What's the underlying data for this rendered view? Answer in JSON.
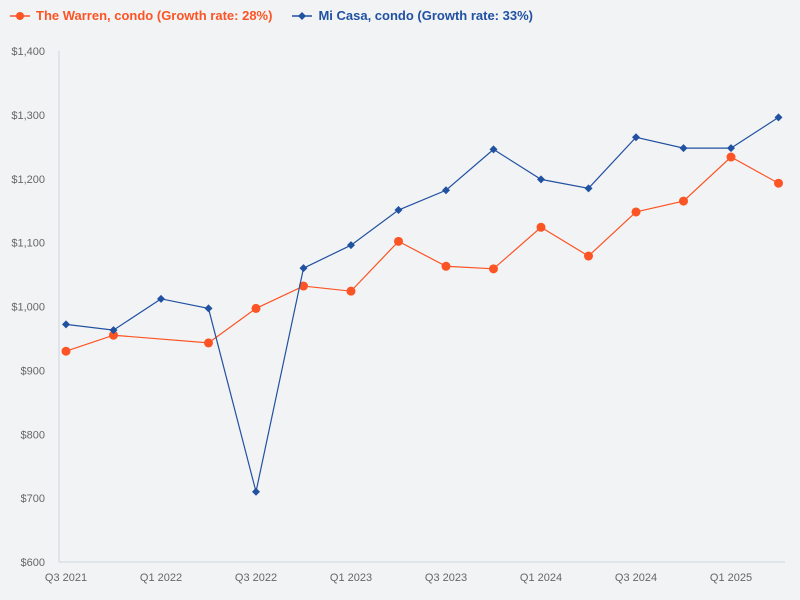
{
  "chart_data": {
    "type": "line",
    "title": "",
    "xlabel": "",
    "ylabel": "",
    "ylim": [
      600,
      1400
    ],
    "y_ticks": [
      "$600",
      "$700",
      "$800",
      "$900",
      "$1,000",
      "$1,100",
      "$1,200",
      "$1,300",
      "$1,400"
    ],
    "y_tick_values": [
      600,
      700,
      800,
      900,
      1000,
      1100,
      1200,
      1300,
      1400
    ],
    "x_tick_labels": [
      "Q3 2021",
      "Q1 2022",
      "Q3 2022",
      "Q1 2023",
      "Q3 2023",
      "Q1 2024",
      "Q3 2024",
      "Q1 2025"
    ],
    "categories": [
      "Q3 2021",
      "Q4 2021",
      "Q1 2022",
      "Q2 2022",
      "Q3 2022",
      "Q4 2022",
      "Q1 2023",
      "Q2 2023",
      "Q3 2023",
      "Q4 2023",
      "Q1 2024",
      "Q2 2024",
      "Q3 2024",
      "Q4 2024",
      "Q1 2025",
      "Q2 2025"
    ],
    "grid": false,
    "legend_position": "top-left",
    "series": [
      {
        "name": "The Warren, condo (Growth rate: 28%)",
        "color": "#fc5424",
        "marker": "circle",
        "values": [
          930,
          955,
          null,
          943,
          997,
          1032,
          1024,
          1102,
          1063,
          1059,
          1124,
          1079,
          1148,
          1165,
          1234,
          1193
        ]
      },
      {
        "name": "Mi Casa, condo (Growth rate: 33%)",
        "color": "#2151a1",
        "marker": "diamond",
        "values": [
          972,
          963,
          1012,
          997,
          710,
          1060,
          1096,
          1151,
          1182,
          1246,
          1199,
          1185,
          1265,
          1248,
          1248,
          1296
        ]
      }
    ]
  }
}
